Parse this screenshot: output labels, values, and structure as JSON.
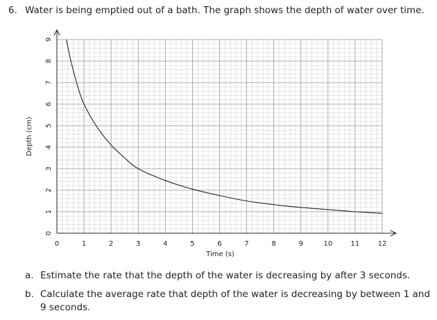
{
  "question": {
    "number": "6.",
    "text": "Water is being emptied out of a bath. The graph shows the depth of water over time."
  },
  "chart_data": {
    "type": "line",
    "x": [
      0.35,
      0.5,
      0.75,
      1,
      1.5,
      2,
      2.5,
      3,
      4,
      5,
      6,
      7,
      8,
      9,
      10,
      11,
      12
    ],
    "series": [
      {
        "color": "#222222",
        "values": [
          9,
          8.1,
          6.9,
          6,
          4.9,
          4.1,
          3.5,
          3.0,
          2.45,
          2.05,
          1.75,
          1.5,
          1.33,
          1.2,
          1.1,
          1.0,
          0.92
        ]
      }
    ],
    "xlim": [
      0,
      12
    ],
    "ylim": [
      0,
      9
    ],
    "xticks": [
      0,
      1,
      2,
      3,
      4,
      5,
      6,
      7,
      8,
      9,
      10,
      11,
      12
    ],
    "yticks": [
      0,
      1,
      2,
      3,
      4,
      5,
      6,
      7,
      8,
      9
    ],
    "x_label": "Time (s)",
    "y_label": "Depth (cm)",
    "grid": true
  },
  "parts": [
    {
      "label": "a.",
      "text": "Estimate the rate that the depth of the water is decreasing by after 3 seconds."
    },
    {
      "label": "b.",
      "text": "Calculate the average rate that depth of the water is decreasing by between 1 and 9 seconds."
    }
  ]
}
